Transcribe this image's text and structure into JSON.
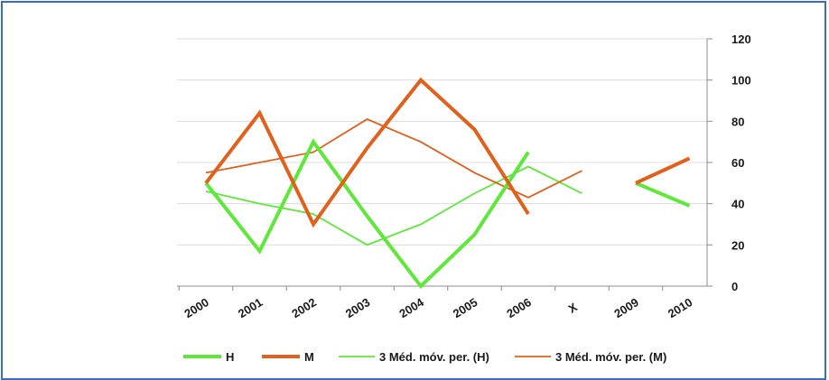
{
  "chart_data": {
    "type": "line",
    "categories": [
      "2000",
      "2001",
      "2002",
      "2003",
      "2004",
      "2005",
      "2006",
      "X",
      "2009",
      "2010"
    ],
    "ylim": [
      0,
      120
    ],
    "yticks": [
      "0",
      "20",
      "40",
      "60",
      "80",
      "100",
      "120"
    ],
    "y_axis_side": "right",
    "grid": true,
    "legend_position": "bottom",
    "series": [
      {
        "name": "H",
        "color": "#5ee83a",
        "width": "thick",
        "values": [
          50,
          17,
          70,
          34,
          0,
          25,
          65,
          null,
          50,
          39
        ]
      },
      {
        "name": "M",
        "color": "#e0601c",
        "width": "thick",
        "values": [
          50,
          84,
          30,
          67,
          100,
          76,
          35,
          null,
          50,
          62
        ]
      },
      {
        "name": "3 Méd. móv. per. (H)",
        "color": "#5ee83a",
        "width": "thin",
        "values": [
          46,
          40,
          35,
          20,
          30,
          45,
          58,
          45,
          null,
          null
        ]
      },
      {
        "name": "3 Méd. móv. per. (M)",
        "color": "#e0601c",
        "width": "thin",
        "values": [
          55,
          60,
          65,
          81,
          70,
          55,
          43,
          56,
          null,
          null
        ]
      }
    ]
  }
}
